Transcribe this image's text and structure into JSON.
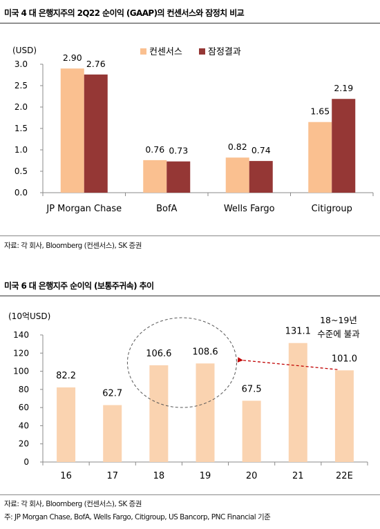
{
  "figure1": {
    "title": "미국 4 대 은행지주의 2Q22 순이익 (GAAP)의 컨센서스와 잠정치 비교",
    "source": "자료: 각 회사, Bloomberg (컨센서스), SK 증권"
  },
  "figure2": {
    "title": "미국 6 대 은행지주 순이익 (보통주귀속) 추이",
    "source": "자료: 각 회사, Bloomberg (컨센서스), SK 증권",
    "note": "주: JP Morgan Chase, BofA, Wells Fargo, Citigroup, US Bancorp, PNC Financial 기준"
  },
  "colors": {
    "consensus": "#FAC090",
    "actual": "#953735",
    "bar2": "#FAD3B0",
    "axis": "#888888",
    "grid": "#000000",
    "annotation_arrow": "#C00000",
    "ellipse": "#555555"
  },
  "chart_data": [
    {
      "type": "bar",
      "title": "",
      "ylabel": "(USD)",
      "ylim": [
        0,
        3.0
      ],
      "yticks": [
        "0.0",
        "0.5",
        "1.0",
        "1.5",
        "2.0",
        "2.5",
        "3.0"
      ],
      "categories": [
        "JP Morgan Chase",
        "BofA",
        "Wells Fargo",
        "Citigroup"
      ],
      "series": [
        {
          "name": "컨센서스",
          "values": [
            2.9,
            0.76,
            0.82,
            1.65
          ],
          "labels": [
            "2.90",
            "0.76",
            "0.82",
            "1.65"
          ]
        },
        {
          "name": "잠정결과",
          "values": [
            2.76,
            0.73,
            0.74,
            2.19
          ],
          "labels": [
            "2.76",
            "0.73",
            "0.74",
            "2.19"
          ]
        }
      ],
      "legend": "top",
      "grid": false
    },
    {
      "type": "bar",
      "title": "",
      "ylabel": "(10억USD)",
      "ylim": [
        0,
        140
      ],
      "yticks": [
        "0",
        "20",
        "40",
        "60",
        "80",
        "100",
        "120",
        "140"
      ],
      "categories": [
        "16",
        "17",
        "18",
        "19",
        "20",
        "21",
        "22E"
      ],
      "values": [
        82.2,
        62.7,
        106.6,
        108.6,
        67.5,
        131.1,
        101.0
      ],
      "labels": [
        "82.2",
        "62.7",
        "106.6",
        "108.6",
        "67.5",
        "131.1",
        "101.0"
      ],
      "annotation": {
        "line1": "18~19년",
        "line2": "수준에 불과"
      },
      "grid": false
    }
  ]
}
